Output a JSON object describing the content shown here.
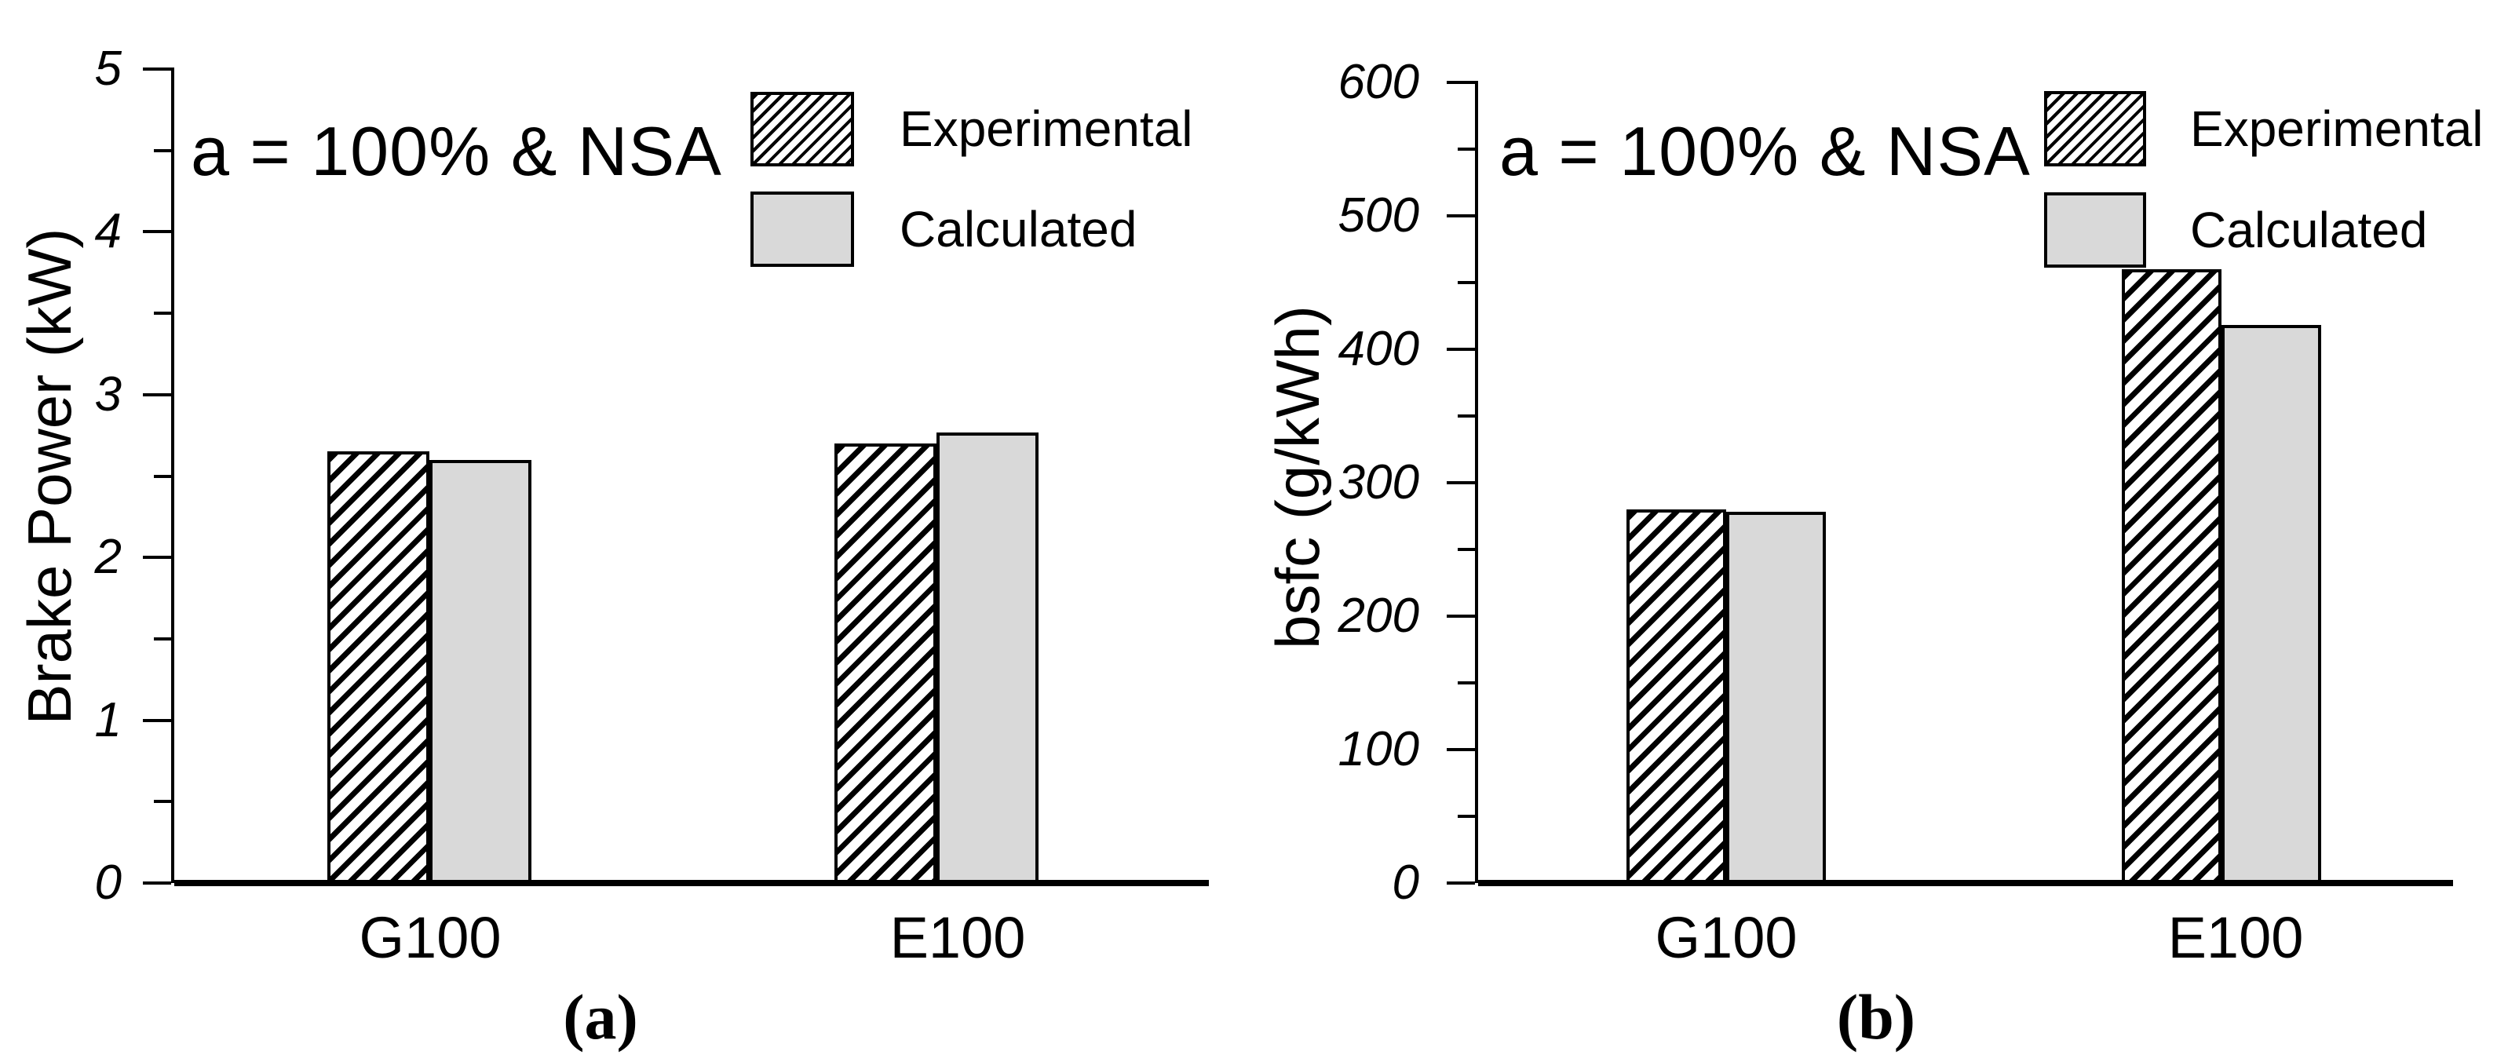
{
  "colors": {
    "ink": "#000000",
    "background": "#ffffff",
    "calculated_fill": "#d9d9d9",
    "experimental_fill": "hatched-black-on-white"
  },
  "chart_data": [
    {
      "type": "bar",
      "panel": "a",
      "caption": "(a)",
      "annotation": "a = 100% & NSA",
      "ylabel": "Brake Power (kW)",
      "xlabel": "",
      "categories": [
        "G100",
        "E100"
      ],
      "series": [
        {
          "name": "Experimental",
          "pattern": "hatched",
          "values": [
            2.65,
            2.7
          ]
        },
        {
          "name": "Calculated",
          "pattern": "solid-gray",
          "values": [
            2.6,
            2.77
          ]
        }
      ],
      "ylim": [
        0,
        5
      ],
      "y_major_step": 1,
      "y_minor_step": 0.5,
      "y_tick_labels": [
        "0",
        "1",
        "2",
        "3",
        "4",
        "5"
      ],
      "tick_label_style": "italic",
      "legend_position": "top-inside",
      "grid": false
    },
    {
      "type": "bar",
      "panel": "b",
      "caption": "(b)",
      "annotation": "a = 100% & NSA",
      "ylabel": "bsfc (g/kWh)",
      "xlabel": "",
      "categories": [
        "G100",
        "E100"
      ],
      "series": [
        {
          "name": "Experimental",
          "pattern": "hatched",
          "values": [
            280,
            460
          ]
        },
        {
          "name": "Calculated",
          "pattern": "solid-gray",
          "values": [
            278,
            418
          ]
        }
      ],
      "ylim": [
        0,
        600
      ],
      "y_major_step": 100,
      "y_minor_step": 50,
      "y_tick_labels": [
        "0",
        "100",
        "200",
        "300",
        "400",
        "500",
        "600"
      ],
      "tick_label_style": "italic",
      "legend_position": "top-right-inside",
      "grid": false
    }
  ]
}
